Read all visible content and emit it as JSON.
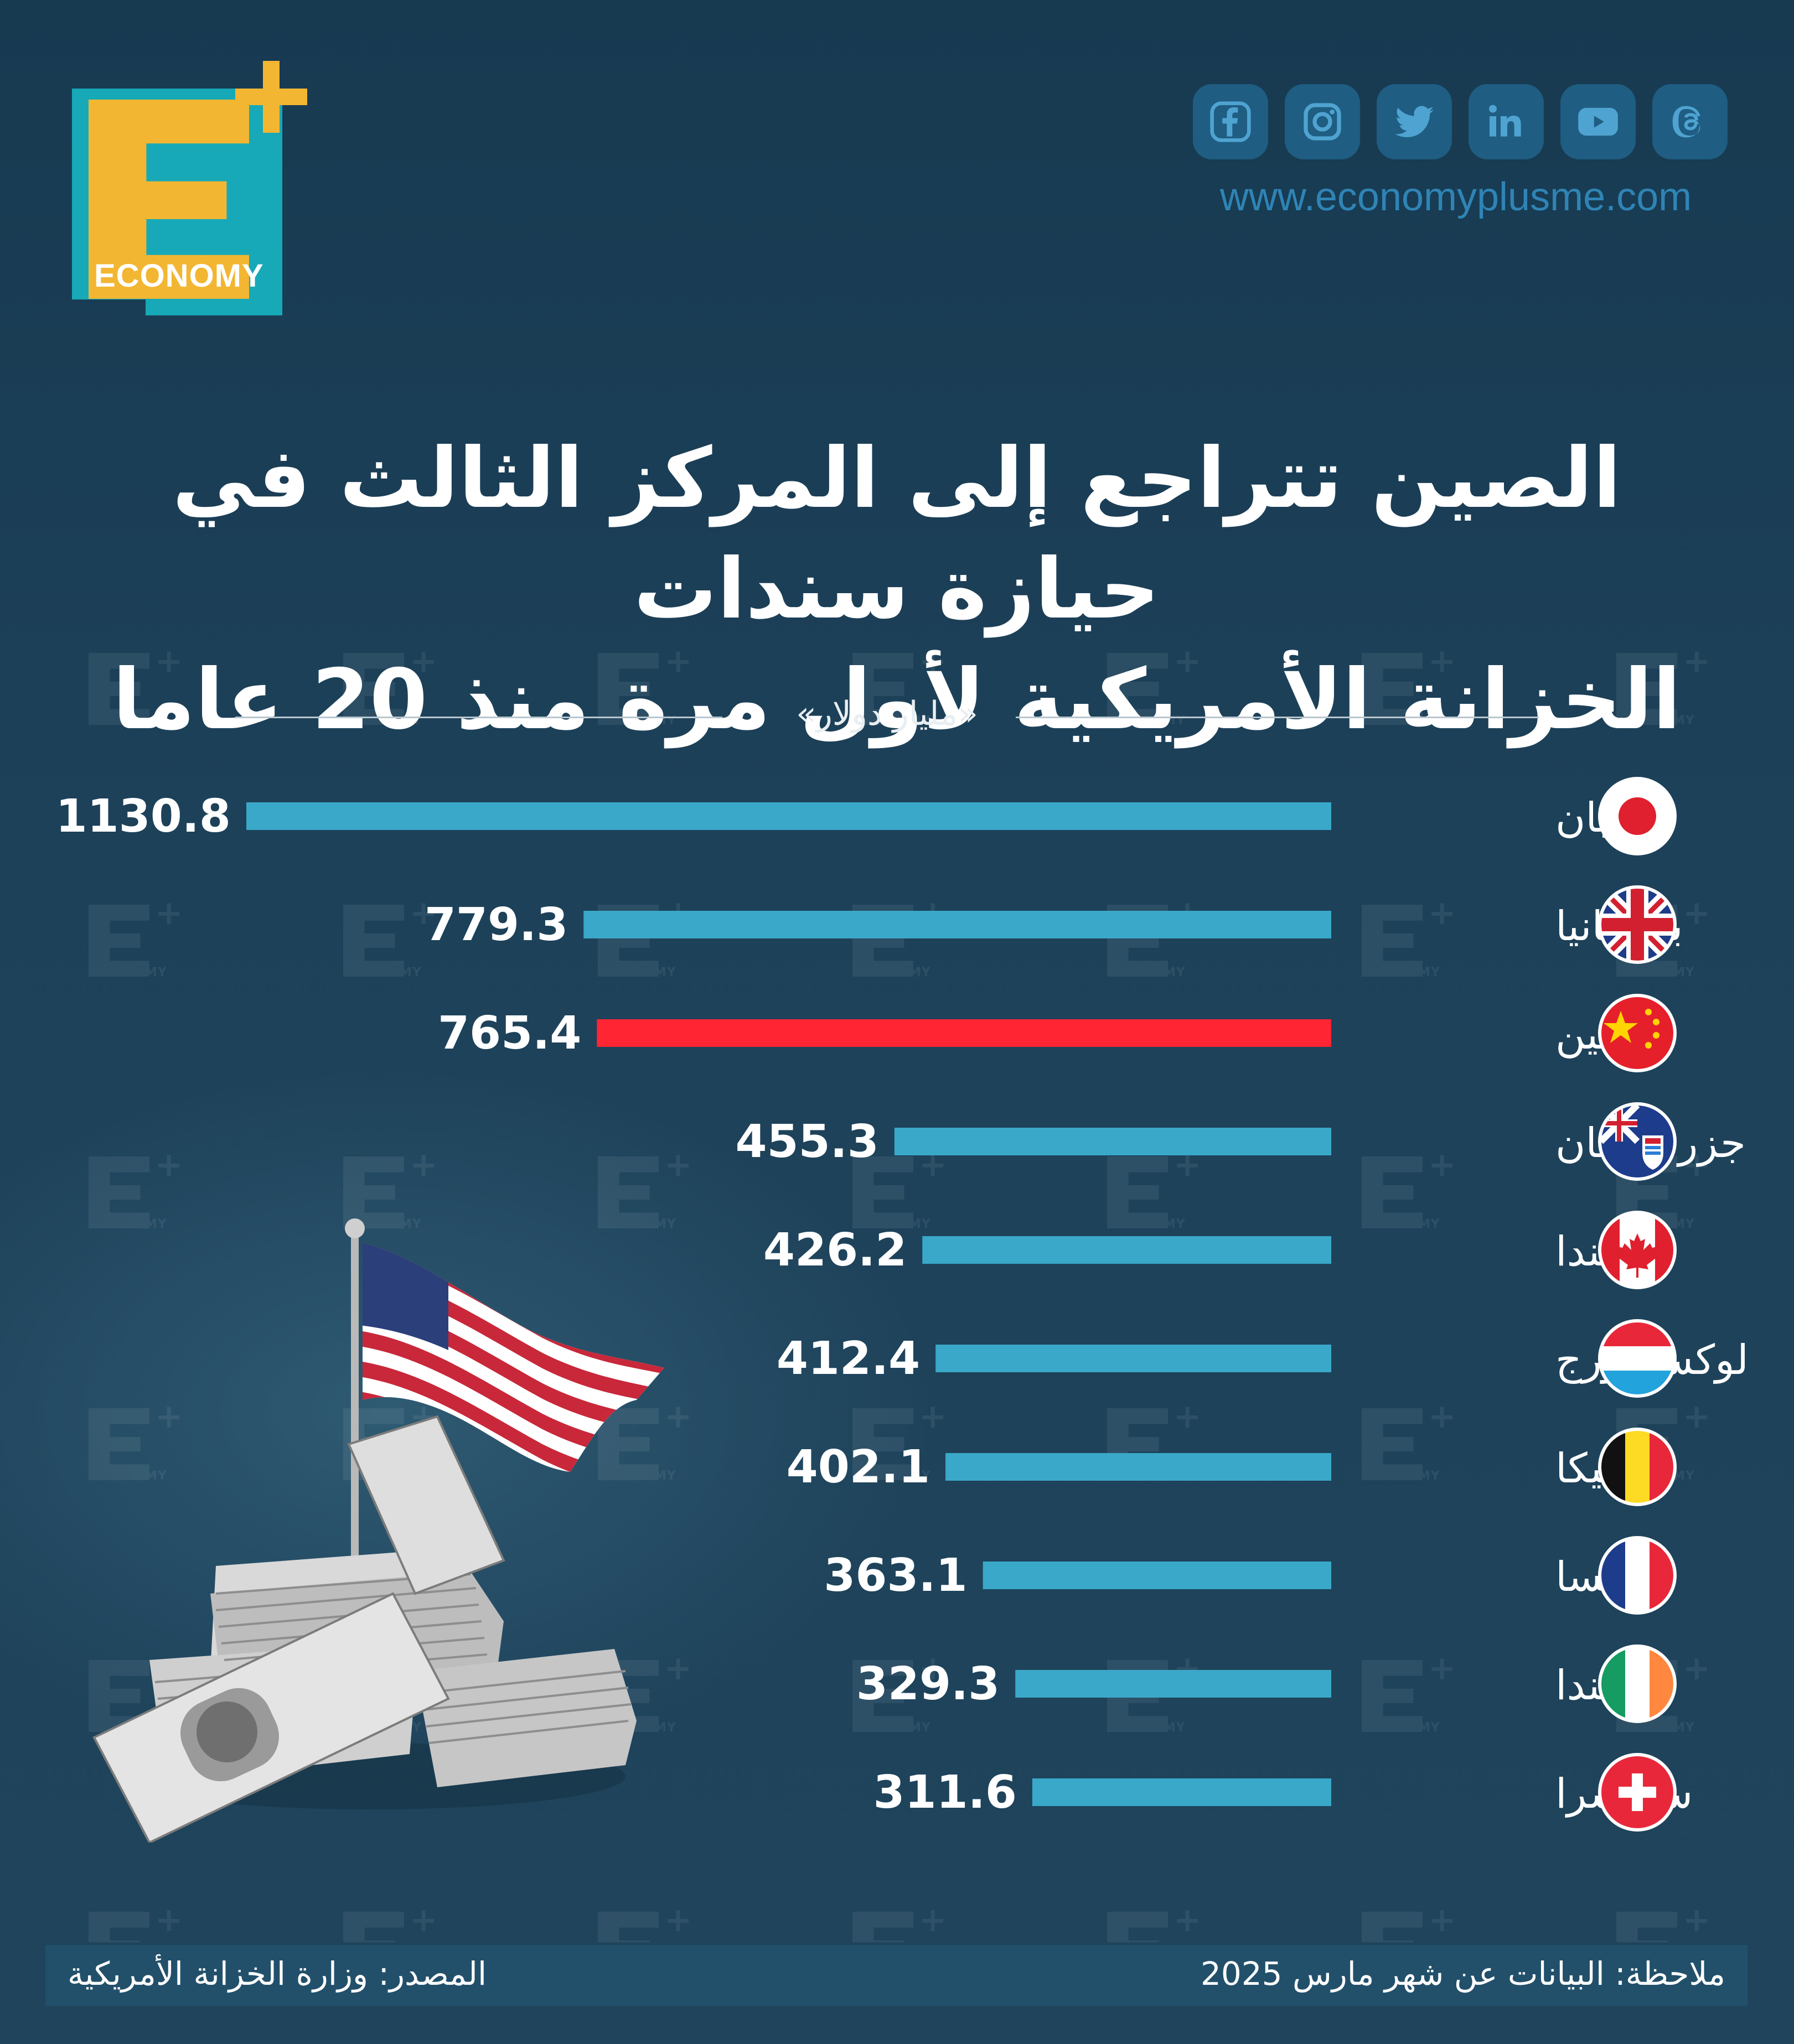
{
  "brand": {
    "logo_text": "ECONOMY",
    "website": "www.economyplusme.com"
  },
  "social": [
    "facebook-icon",
    "instagram-icon",
    "twitter-icon",
    "linkedin-icon",
    "youtube-icon",
    "threads-icon"
  ],
  "title_line1": "الصين تتراجع إلى المركز الثالث في حيازة سندات",
  "title_line2": "الخزانة الأمريكية لأول مرة منذ 20 عاما",
  "unit": "«مليار دولار»",
  "chart_data": {
    "type": "bar",
    "orientation": "horizontal",
    "categories": [
      "اليابان",
      "بريطانيا",
      "الصين",
      "جزر كايمان",
      "كندا",
      "لوكسمبورج",
      "بلجيكا",
      "فرنسا",
      "أيرلندا",
      "سويسرا"
    ],
    "values": [
      1130.8,
      779.3,
      765.4,
      455.3,
      426.2,
      412.4,
      402.1,
      363.1,
      329.3,
      311.6
    ],
    "value_labels": [
      "1130.8",
      "779.3",
      "765.4",
      "455.3",
      "426.2",
      "412.4",
      "402.1",
      "363.1",
      "329.3",
      "311.6"
    ],
    "flags": [
      "japan-flag",
      "uk-flag",
      "china-flag",
      "cayman-flag",
      "canada-flag",
      "luxembourg-flag",
      "belgium-flag",
      "france-flag",
      "ireland-flag",
      "switzerland-flag"
    ],
    "highlight_index": 2,
    "colors": {
      "bar": "#3aa8c8",
      "highlight": "#ff2533"
    }
  },
  "footer": {
    "note": "ملاحظة: البيانات عن شهر مارس 2025",
    "source": "المصدر: وزارة الخزانة الأمريكية"
  }
}
